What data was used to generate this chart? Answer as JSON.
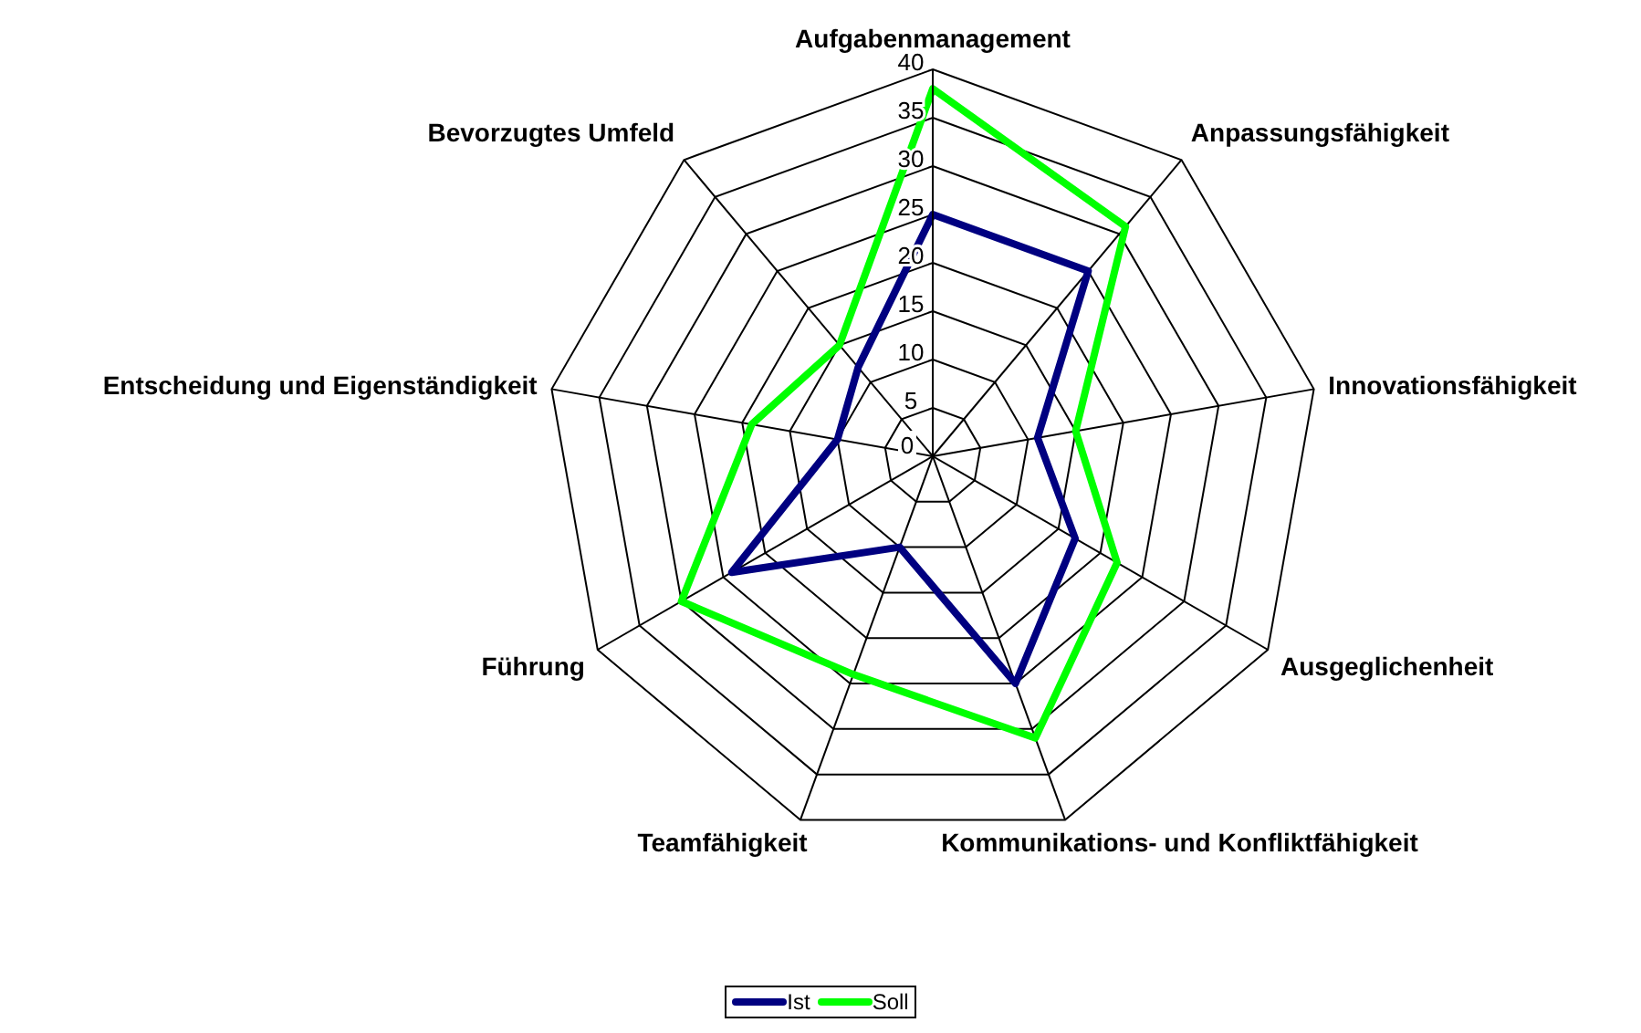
{
  "chart_data": {
    "type": "radar",
    "categories": [
      "Aufgabenmanagement",
      "Anpassungsfähigkeit",
      "Innovationsfähigkeit",
      "Ausgeglichenheit",
      "Kommunikations- und Konfliktfähigkeit",
      "Teamfähigkeit",
      "Führung",
      "Entscheidung und Eigenständigkeit",
      "Bevorzugtes Umfeld"
    ],
    "series": [
      {
        "name": "Ist",
        "color": "#000080",
        "values": [
          25,
          25,
          11,
          17,
          25,
          10,
          24,
          10,
          12
        ]
      },
      {
        "name": "Soll",
        "color": "#00ff00",
        "values": [
          38,
          31,
          15,
          22,
          31,
          24,
          30,
          19,
          15
        ]
      }
    ],
    "ylim": [
      0,
      40
    ],
    "yticks": [
      0,
      5,
      10,
      15,
      20,
      25,
      30,
      35,
      40
    ],
    "grid": true,
    "legend": "bottom",
    "marker": "none",
    "line_style": "solid"
  }
}
